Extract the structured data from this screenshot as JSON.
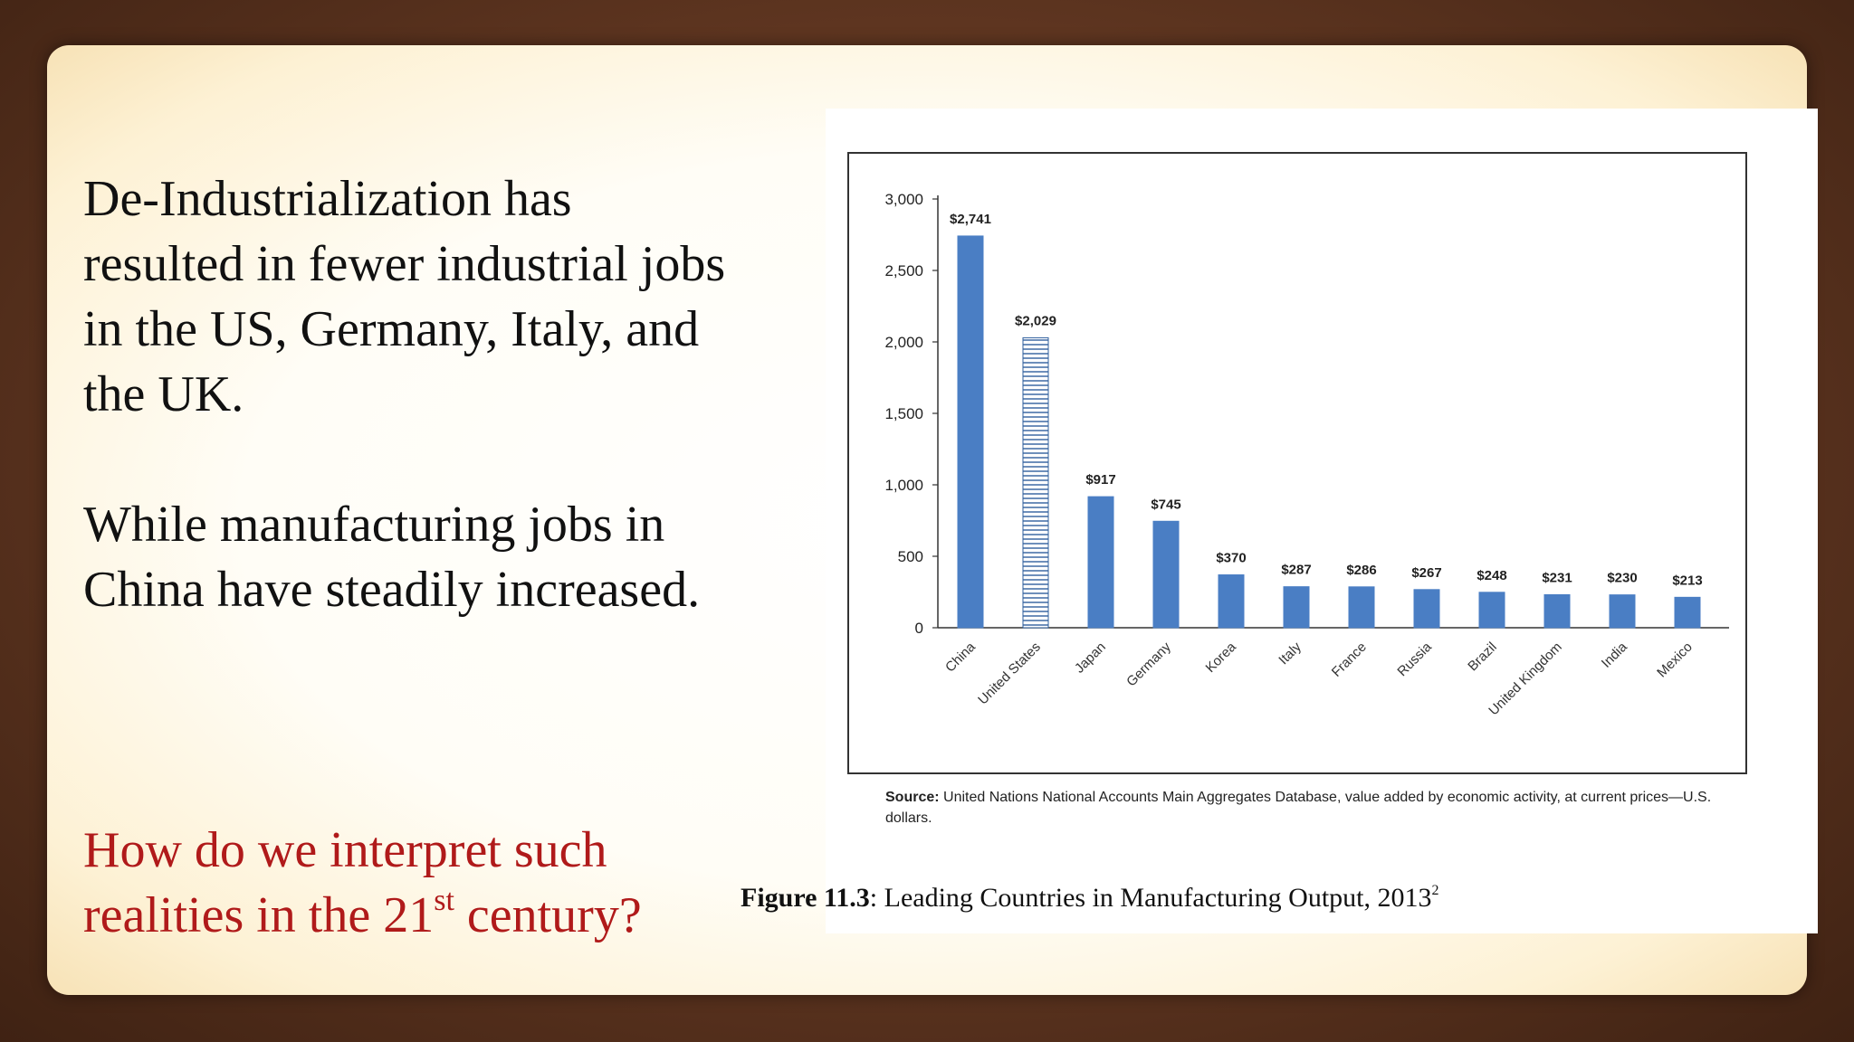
{
  "slide": {
    "para1": "De-Industrialization has resulted in fewer industrial jobs in the US, Germany, Italy, and the UK.",
    "para2": "While manufacturing jobs in China have steadily increased.",
    "question_before": "How do we interpret such realities in the 21",
    "question_sup": "st",
    "question_after": " century?"
  },
  "figure": {
    "source_label": "Source:",
    "source_text": " United Nations National Accounts Main Aggregates Database, value added by economic activity, at current prices—U.S. dollars.",
    "caption_num": "Figure 11.3",
    "caption_text": ":  Leading Countries in Manufacturing Output, 2013",
    "caption_sup": "2"
  },
  "chart_data": {
    "type": "bar",
    "title": "",
    "xlabel": "",
    "ylabel": "",
    "ylim": [
      0,
      3000
    ],
    "yticks": [
      0,
      500,
      1000,
      1500,
      2000,
      2500,
      3000
    ],
    "ytick_labels": [
      "0",
      "500",
      "1,000",
      "1,500",
      "2,000",
      "2,500",
      "3,000"
    ],
    "categories": [
      "China",
      "United States",
      "Japan",
      "Germany",
      "Korea",
      "Italy",
      "France",
      "Russia",
      "Brazil",
      "United Kingdom",
      "India",
      "Mexico"
    ],
    "values": [
      2741,
      2029,
      917,
      745,
      370,
      287,
      286,
      267,
      248,
      231,
      230,
      213
    ],
    "data_labels": [
      "$2,741",
      "$2,029",
      "$917",
      "$745",
      "$370",
      "$287",
      "$286",
      "$267",
      "$248",
      "$231",
      "$230",
      "$213"
    ],
    "bar_color": "#4a7ec4",
    "highlight": {
      "category": "United States",
      "style": "horizontal-hatch",
      "color": "#2f5f9e"
    },
    "grid": false
  }
}
